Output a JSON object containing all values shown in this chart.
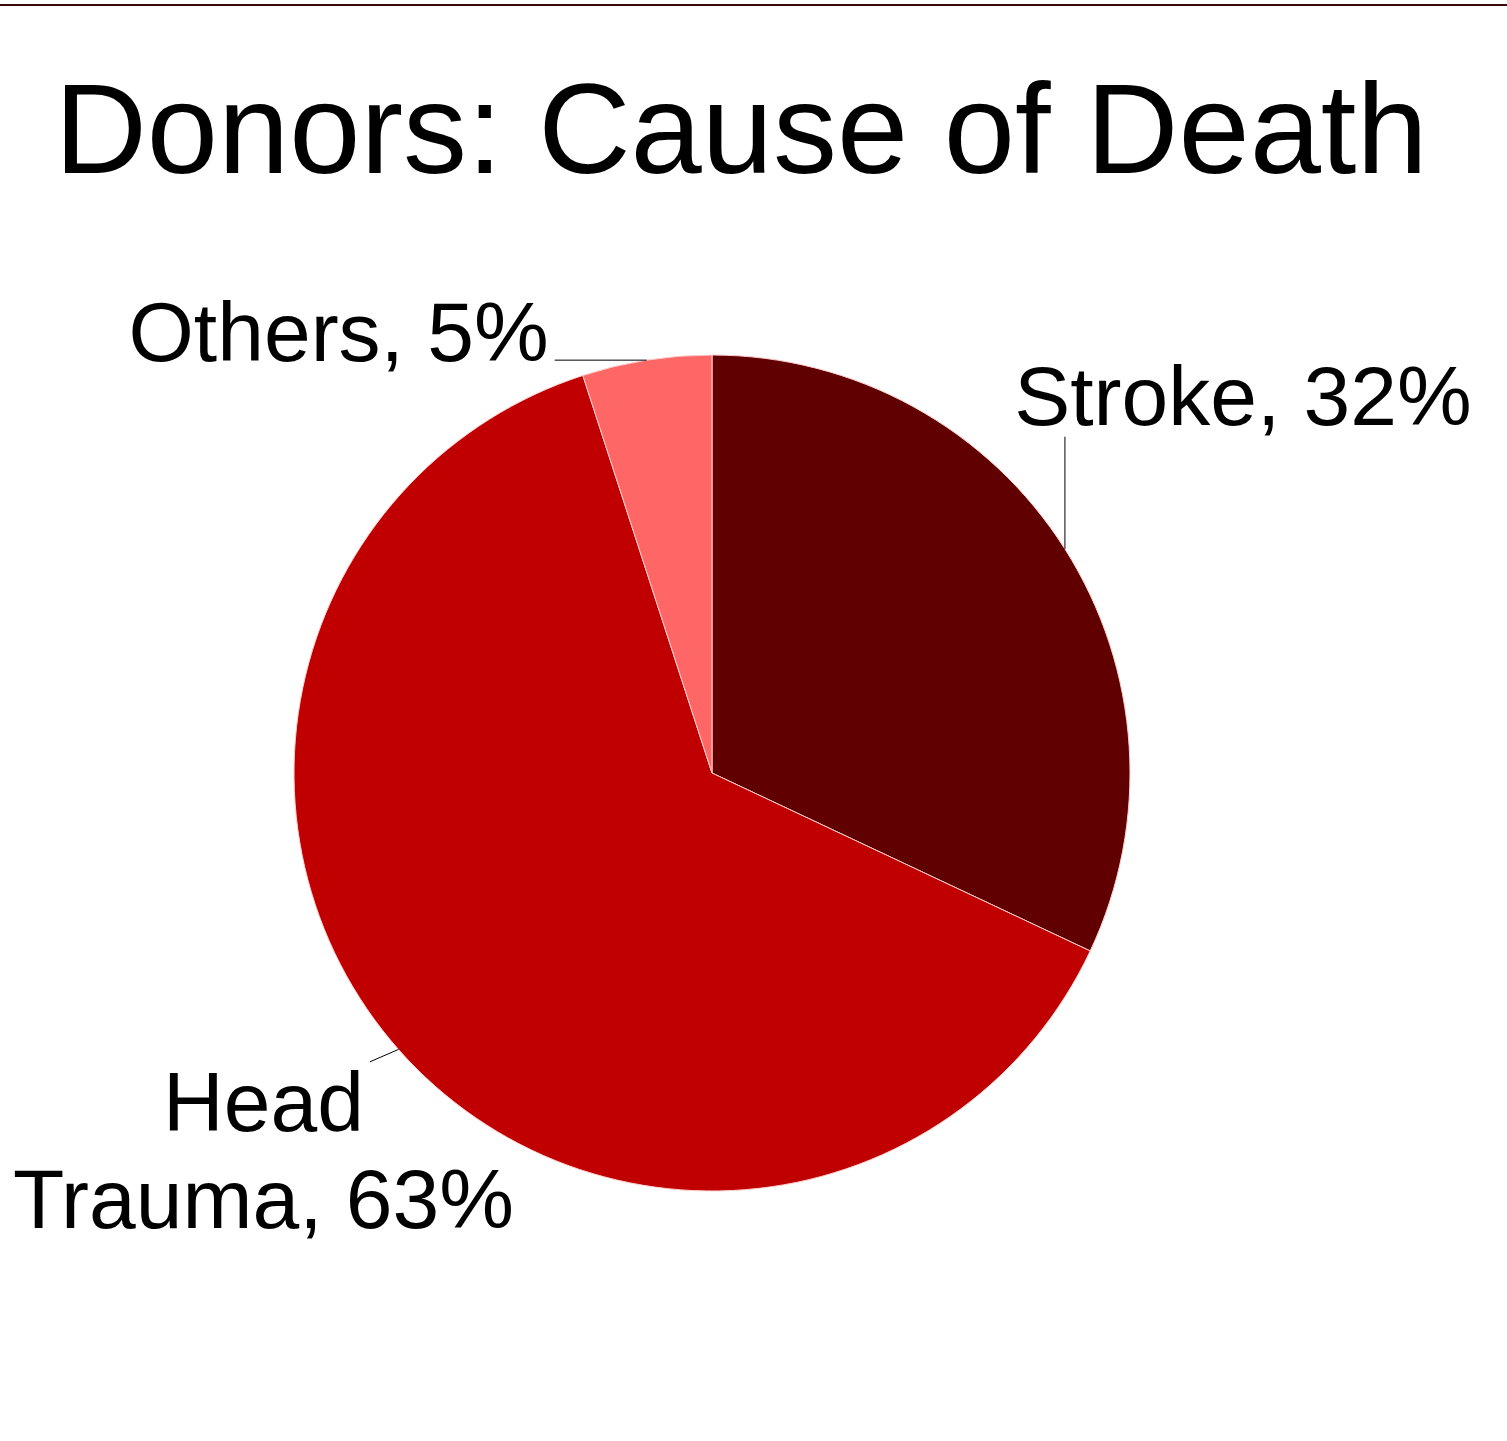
{
  "chart_data": {
    "type": "pie",
    "title": "Donors: Cause of Death",
    "categories": [
      "Stroke",
      "Head Trauma",
      "Others"
    ],
    "values": [
      32,
      63,
      5
    ],
    "colors": [
      "#600000",
      "#c00000",
      "#ff6666"
    ],
    "value_labels": [
      "32%",
      "63%",
      "5%"
    ],
    "legend": false
  }
}
